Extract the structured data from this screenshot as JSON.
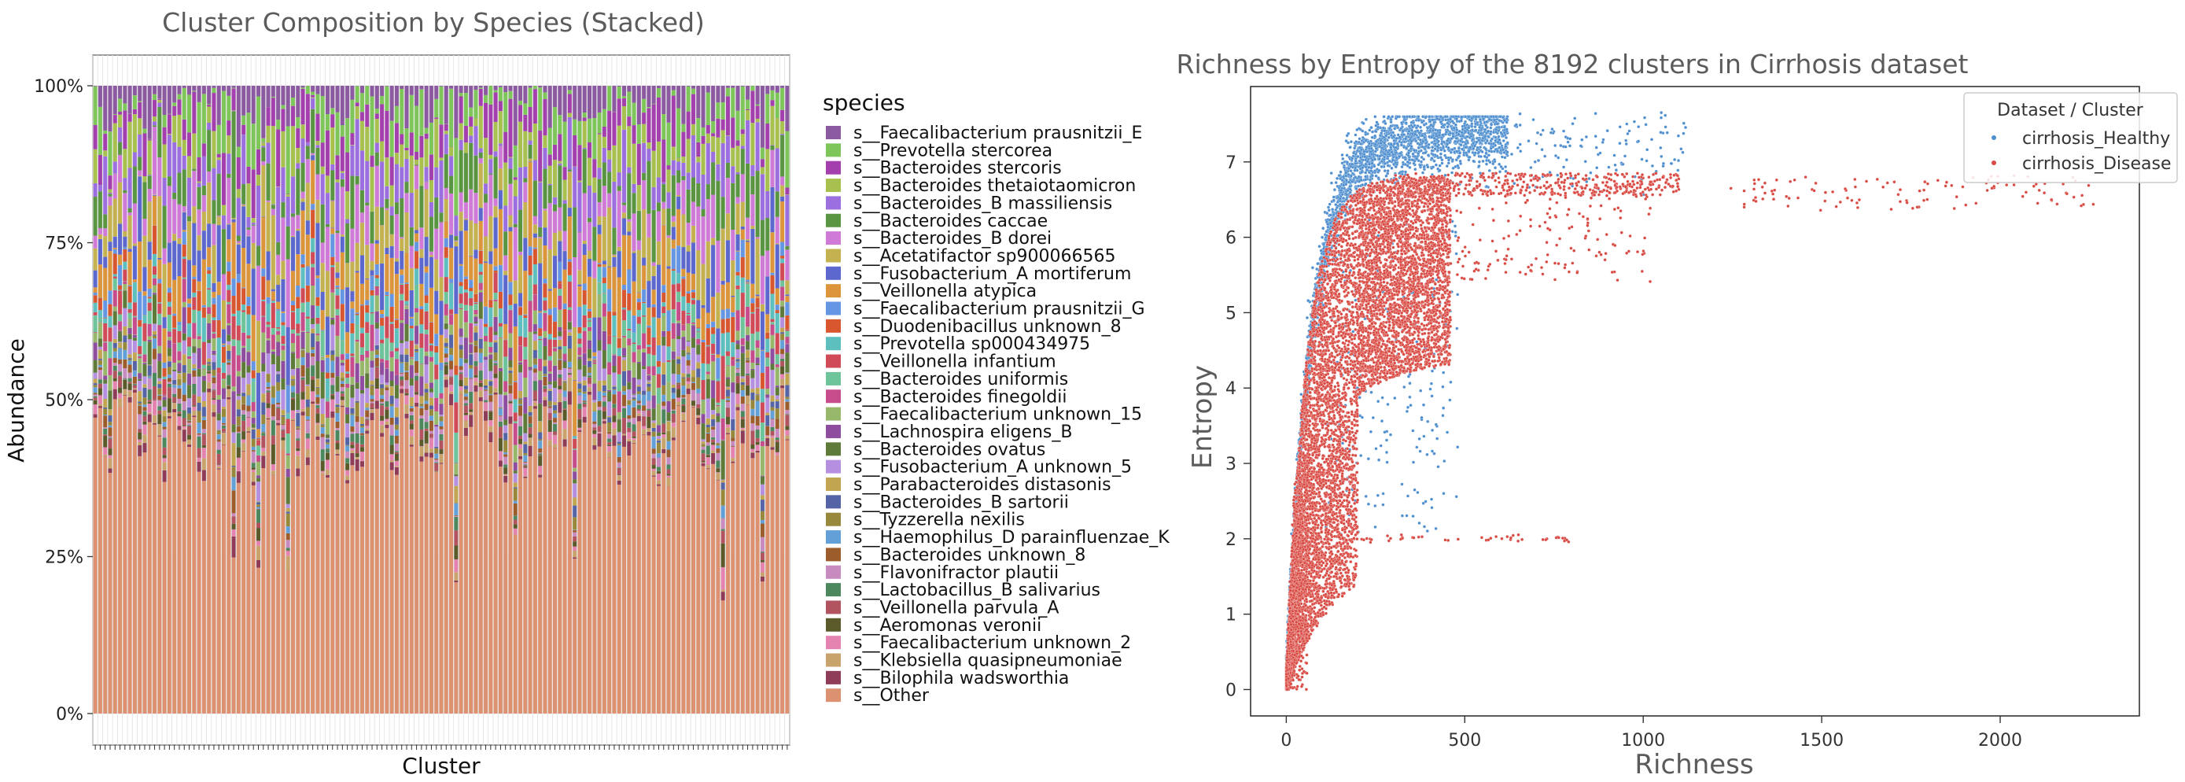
{
  "chart_data": [
    {
      "type": "bar",
      "stacked": true,
      "title": "Cluster Composition by Species (Stacked)",
      "xlabel": "Cluster",
      "ylabel": "Abundance",
      "ylim": [
        0,
        1
      ],
      "ytick_labels": [
        "0%",
        "25%",
        "50%",
        "75%",
        "100%"
      ],
      "yticks": [
        0,
        0.25,
        0.5,
        0.75,
        1.0
      ],
      "n_clusters": 141,
      "legend_title": "species",
      "legend_position": "right",
      "species": [
        {
          "name": "s__Faecalibacterium prausnitzii_E",
          "color": "#8b5aa1"
        },
        {
          "name": "s__Prevotella stercorea",
          "color": "#7fc65a"
        },
        {
          "name": "s__Bacteroides stercoris",
          "color": "#a43fae"
        },
        {
          "name": "s__Bacteroides thetaiotaomicron",
          "color": "#a8c04e"
        },
        {
          "name": "s__Bacteroides_B massiliensis",
          "color": "#9b6fe0"
        },
        {
          "name": "s__Bacteroides caccae",
          "color": "#5a9541"
        },
        {
          "name": "s__Bacteroides_B dorei",
          "color": "#d07ad8"
        },
        {
          "name": "s__Acetatifactor sp900066565",
          "color": "#c4b14f"
        },
        {
          "name": "s__Fusobacterium_A mortiferum",
          "color": "#5d68cf"
        },
        {
          "name": "s__Veillonella atypica",
          "color": "#dc953a"
        },
        {
          "name": "s__Faecalibacterium prausnitzii_G",
          "color": "#6496e3"
        },
        {
          "name": "s__Duodenibacillus unknown_8",
          "color": "#d9572f"
        },
        {
          "name": "s__Prevotella sp000434975",
          "color": "#5ec0be"
        },
        {
          "name": "s__Veillonella infantium",
          "color": "#d04a58"
        },
        {
          "name": "s__Bacteroides uniformis",
          "color": "#6dc49a"
        },
        {
          "name": "s__Bacteroides finegoldii",
          "color": "#c74c8c"
        },
        {
          "name": "s__Faecalibacterium unknown_15",
          "color": "#97b86b"
        },
        {
          "name": "s__Lachnospira eligens_B",
          "color": "#8e4d9f"
        },
        {
          "name": "s__Bacteroides ovatus",
          "color": "#5e7b39"
        },
        {
          "name": "s__Fusobacterium_A unknown_5",
          "color": "#b58fe0"
        },
        {
          "name": "s__Parabacteroides distasonis",
          "color": "#c1a550"
        },
        {
          "name": "s__Bacteroides_B sartorii",
          "color": "#5564a6"
        },
        {
          "name": "s__Tyzzerella nexilis",
          "color": "#97883c"
        },
        {
          "name": "s__Haemophilus_D parainfluenzae_K",
          "color": "#63a0d8"
        },
        {
          "name": "s__Bacteroides unknown_8",
          "color": "#9c5c2c"
        },
        {
          "name": "s__Flavonifractor plautii",
          "color": "#c78bc0"
        },
        {
          "name": "s__Lactobacillus_B salivarius",
          "color": "#4c875e"
        },
        {
          "name": "s__Veillonella parvula_A",
          "color": "#b2545f"
        },
        {
          "name": "s__Aeromonas veronii",
          "color": "#5b5a2a"
        },
        {
          "name": "s__Faecalibacterium unknown_2",
          "color": "#e583b0"
        },
        {
          "name": "s__Klebsiella quasipneumoniae",
          "color": "#c8a36c"
        },
        {
          "name": "s__Bilophila wadsworthia",
          "color": "#8e3c57"
        },
        {
          "name": "s__Other",
          "color": "#dc9171"
        }
      ]
    },
    {
      "type": "scatter",
      "title": "Richness by Entropy of the 8192 clusters in Cirrhosis dataset",
      "xlabel": "Richness",
      "ylabel": "Entropy",
      "xlim": [
        -100,
        2390
      ],
      "ylim": [
        -0.35,
        8.0
      ],
      "xticks": [
        0,
        500,
        1000,
        1500,
        2000
      ],
      "yticks": [
        0,
        1,
        2,
        3,
        4,
        5,
        6,
        7
      ],
      "legend_title": "Dataset / Cluster",
      "legend_position": "top-right",
      "series": [
        {
          "name": "cirrhosis_Healthy",
          "color": "#4f8fcf"
        },
        {
          "name": "cirrhosis_Disease",
          "color": "#d94a43"
        }
      ]
    }
  ]
}
